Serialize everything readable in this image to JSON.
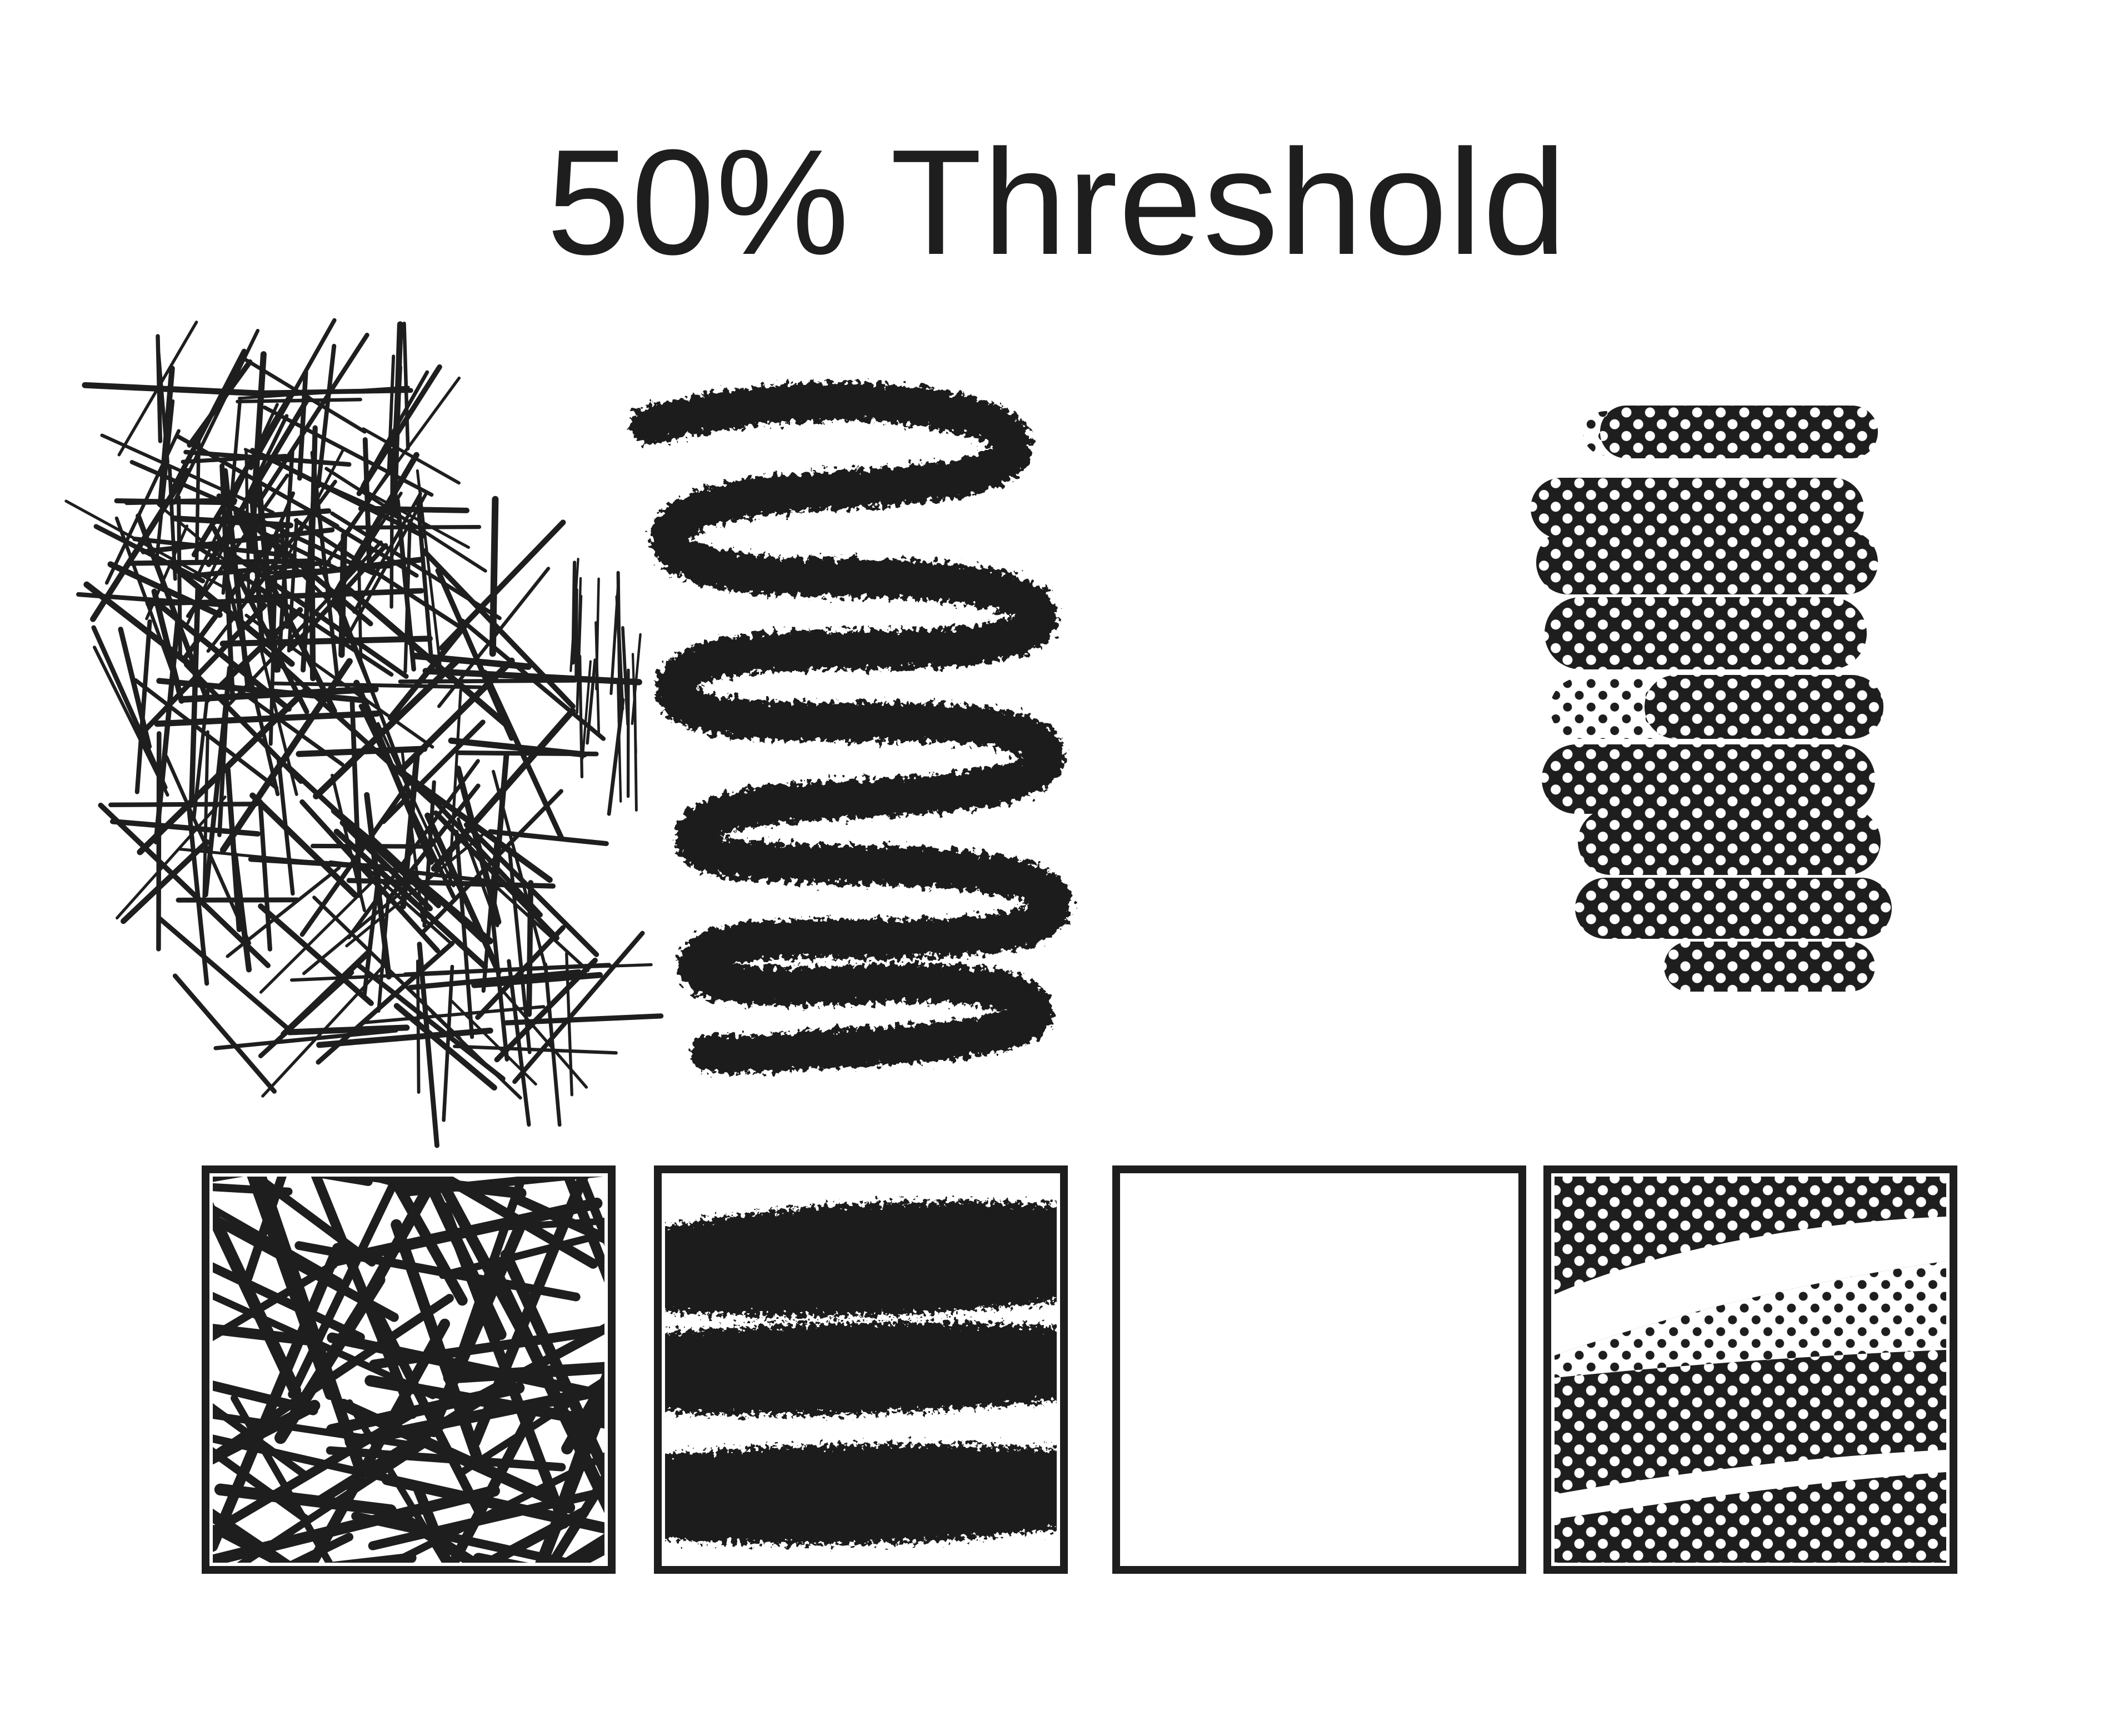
{
  "title": "50% Threshold",
  "ink_color": "#1e1e1e",
  "background_color": "#ffffff",
  "brush_samples": [
    {
      "name": "hatch-brush",
      "pattern": "crosshatch"
    },
    {
      "name": "charcoal-brush",
      "pattern": "charcoal-zigzag"
    },
    {
      "name": "empty-brush",
      "pattern": "none"
    },
    {
      "name": "halftone-brush",
      "pattern": "halftone"
    }
  ]
}
